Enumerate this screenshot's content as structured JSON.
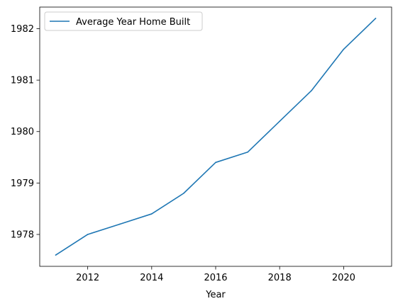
{
  "chart_data": {
    "type": "line",
    "title": "",
    "xlabel": "Year",
    "ylabel": "",
    "x": [
      2011,
      2012,
      2013,
      2014,
      2015,
      2016,
      2017,
      2018,
      2019,
      2020,
      2021
    ],
    "series": [
      {
        "name": "Average Year Home Built",
        "color": "#1f77b4",
        "values": [
          1977.6,
          1978.0,
          1978.2,
          1978.4,
          1978.8,
          1979.4,
          1979.6,
          1980.2,
          1980.8,
          1981.6,
          1982.2
        ]
      }
    ],
    "xlim": [
      2010.5,
      2021.5
    ],
    "ylim": [
      1977.38,
      1982.42
    ],
    "xticks": [
      2012,
      2014,
      2016,
      2018,
      2020
    ],
    "yticks": [
      1978,
      1979,
      1980,
      1981,
      1982
    ],
    "grid": false,
    "legend_position": "upper-left"
  }
}
